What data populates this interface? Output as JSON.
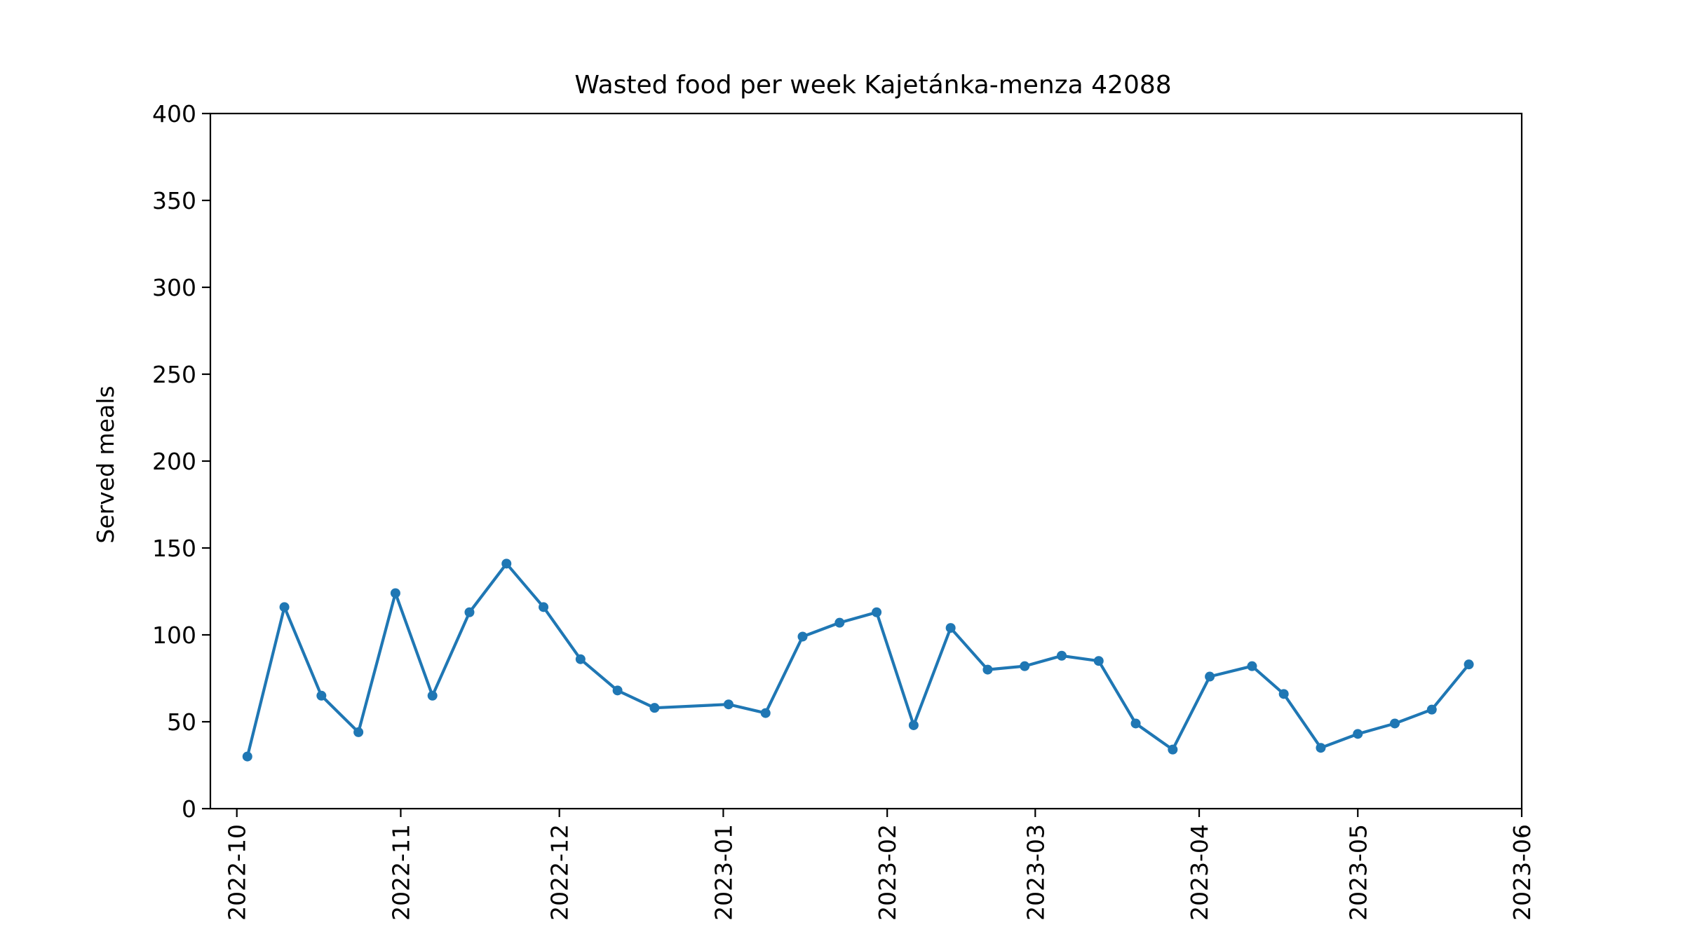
{
  "chart_data": {
    "type": "line",
    "title": "Wasted food per week Kajetánka-menza 42088",
    "xlabel": "",
    "ylabel": "Served meals",
    "ylim": [
      0,
      400
    ],
    "xlim": [
      "2022-09-26",
      "2023-06-01"
    ],
    "yticks": [
      0,
      50,
      100,
      150,
      200,
      250,
      300,
      350,
      400
    ],
    "xticks": [
      "2022-10-01",
      "2022-11-01",
      "2022-12-01",
      "2023-01-01",
      "2023-02-01",
      "2023-03-01",
      "2023-04-01",
      "2023-05-01",
      "2023-06-01"
    ],
    "xtick_labels": [
      "2022-10",
      "2022-11",
      "2022-12",
      "2023-01",
      "2023-02",
      "2023-03",
      "2023-04",
      "2023-05",
      "2023-06"
    ],
    "grid": false,
    "color": "#1f77b4",
    "series": [
      {
        "x": [
          "2022-10-03",
          "2022-10-10",
          "2022-10-17",
          "2022-10-24",
          "2022-10-31",
          "2022-11-07",
          "2022-11-14",
          "2022-11-21",
          "2022-11-28",
          "2022-12-05",
          "2022-12-12",
          "2022-12-19",
          "2023-01-02",
          "2023-01-09",
          "2023-01-16",
          "2023-01-23",
          "2023-01-30",
          "2023-02-06",
          "2023-02-13",
          "2023-02-20",
          "2023-02-27",
          "2023-03-06",
          "2023-03-13",
          "2023-03-20",
          "2023-03-27",
          "2023-04-03",
          "2023-04-11",
          "2023-04-17",
          "2023-04-24",
          "2023-05-01",
          "2023-05-08",
          "2023-05-15",
          "2023-05-22"
        ],
        "values": [
          30,
          116,
          65,
          44,
          124,
          65,
          113,
          141,
          116,
          86,
          68,
          58,
          60,
          55,
          99,
          107,
          113,
          48,
          104,
          80,
          82,
          88,
          85,
          49,
          34,
          76,
          82,
          66,
          35,
          43,
          49,
          57,
          83
        ]
      }
    ]
  }
}
